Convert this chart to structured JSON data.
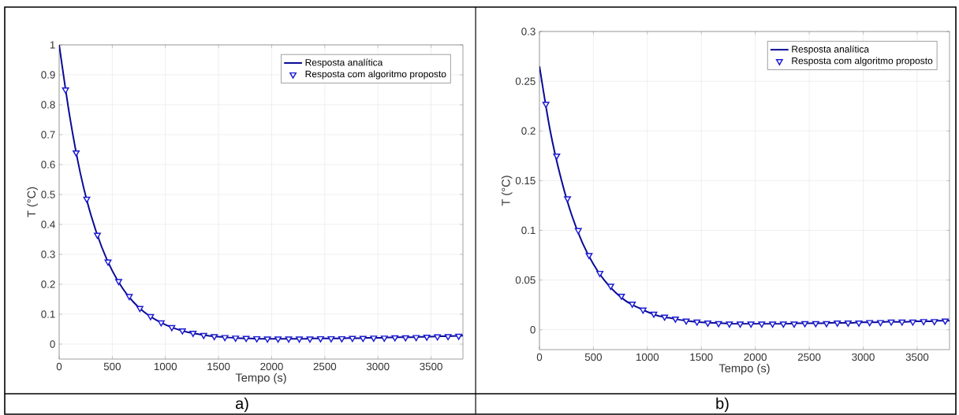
{
  "chart_data": [
    {
      "type": "line",
      "xlabel": "Tempo (s)",
      "ylabel": "T (°C)",
      "annotations": [
        "a)"
      ],
      "xlim": [
        0,
        3800
      ],
      "ylim": [
        -0.05,
        1
      ],
      "xticks": [
        0,
        500,
        1000,
        1500,
        2000,
        2500,
        3000,
        3500
      ],
      "yticks": [
        0,
        0.1,
        0.2,
        0.3,
        0.4,
        0.5,
        0.6,
        0.7,
        0.8,
        0.9,
        1
      ],
      "grid": true,
      "legend": "top right",
      "series": [
        {
          "name": "Resposta analítica",
          "color": "#0a0a96",
          "marker": "none",
          "x": [
            0,
            100,
            200,
            300,
            400,
            500,
            600,
            700,
            800,
            900,
            1000,
            1100,
            1200,
            1300,
            1400,
            1500,
            1600,
            1700,
            1800,
            1900,
            2000,
            2100,
            2200,
            2300,
            2400,
            2500,
            2600,
            2700,
            2800,
            2900,
            3000,
            3100,
            3200,
            3300,
            3400,
            3500,
            3600,
            3700,
            3800
          ],
          "values": [
            1,
            0.76,
            0.57,
            0.43,
            0.325,
            0.245,
            0.185,
            0.14,
            0.107,
            0.083,
            0.065,
            0.051,
            0.041,
            0.034,
            0.028,
            0.025,
            0.022,
            0.02,
            0.019,
            0.018,
            0.018,
            0.018,
            0.018,
            0.018,
            0.019,
            0.019,
            0.019,
            0.02,
            0.02,
            0.021,
            0.021,
            0.022,
            0.023,
            0.023,
            0.024,
            0.025,
            0.026,
            0.027,
            0.028
          ]
        },
        {
          "name": "Resposta com algoritmo proposto",
          "type": "scatter",
          "color": "#1a1ad2",
          "marker": "triangle",
          "x": [
            60,
            160,
            260,
            360,
            460,
            560,
            660,
            760,
            860,
            960,
            1060,
            1160,
            1260,
            1360,
            1460,
            1560,
            1660,
            1760,
            1860,
            1960,
            2060,
            2160,
            2260,
            2360,
            2460,
            2560,
            2660,
            2760,
            2860,
            2960,
            3060,
            3160,
            3260,
            3360,
            3460,
            3560,
            3660,
            3760
          ],
          "values": [
            0.85,
            0.64,
            0.485,
            0.365,
            0.275,
            0.21,
            0.16,
            0.12,
            0.093,
            0.072,
            0.056,
            0.045,
            0.037,
            0.03,
            0.026,
            0.023,
            0.021,
            0.02,
            0.019,
            0.018,
            0.018,
            0.018,
            0.018,
            0.018,
            0.019,
            0.019,
            0.019,
            0.02,
            0.02,
            0.021,
            0.021,
            0.022,
            0.022,
            0.023,
            0.024,
            0.025,
            0.026,
            0.027
          ]
        }
      ]
    },
    {
      "type": "line",
      "xlabel": "Tempo (s)",
      "ylabel": "T (°C)",
      "annotations": [
        "b)"
      ],
      "xlim": [
        0,
        3800
      ],
      "ylim": [
        -0.02,
        0.3
      ],
      "xticks": [
        0,
        500,
        1000,
        1500,
        2000,
        2500,
        3000,
        3500
      ],
      "yticks": [
        0,
        0.05,
        0.1,
        0.15,
        0.2,
        0.25,
        0.3
      ],
      "grid": true,
      "legend": "top right",
      "series": [
        {
          "name": "Resposta analítica",
          "color": "#0a0a96",
          "marker": "none",
          "x": [
            0,
            100,
            200,
            300,
            400,
            500,
            600,
            700,
            800,
            900,
            1000,
            1100,
            1200,
            1300,
            1400,
            1500,
            1600,
            1700,
            1800,
            1900,
            2000,
            2100,
            2200,
            2300,
            2400,
            2500,
            2600,
            2700,
            2800,
            2900,
            3000,
            3100,
            3200,
            3300,
            3400,
            3500,
            3600,
            3700,
            3800
          ],
          "values": [
            0.265,
            0.2,
            0.152,
            0.115,
            0.087,
            0.066,
            0.05,
            0.038,
            0.029,
            0.023,
            0.018,
            0.014,
            0.012,
            0.01,
            0.0085,
            0.0075,
            0.007,
            0.0065,
            0.006,
            0.006,
            0.006,
            0.006,
            0.006,
            0.006,
            0.0065,
            0.0065,
            0.0065,
            0.007,
            0.007,
            0.007,
            0.0075,
            0.0075,
            0.008,
            0.008,
            0.008,
            0.0085,
            0.0085,
            0.009,
            0.009
          ]
        },
        {
          "name": "Resposta com algoritmo proposto",
          "type": "scatter",
          "color": "#1a1ad2",
          "marker": "triangle",
          "x": [
            60,
            160,
            260,
            360,
            460,
            560,
            660,
            760,
            860,
            960,
            1060,
            1160,
            1260,
            1360,
            1460,
            1560,
            1660,
            1760,
            1860,
            1960,
            2060,
            2160,
            2260,
            2360,
            2460,
            2560,
            2660,
            2760,
            2860,
            2960,
            3060,
            3160,
            3260,
            3360,
            3460,
            3560,
            3660,
            3760
          ],
          "values": [
            0.227,
            0.175,
            0.132,
            0.1,
            0.075,
            0.057,
            0.044,
            0.034,
            0.026,
            0.02,
            0.016,
            0.013,
            0.011,
            0.009,
            0.008,
            0.007,
            0.0065,
            0.006,
            0.006,
            0.006,
            0.006,
            0.006,
            0.006,
            0.006,
            0.0065,
            0.0065,
            0.0065,
            0.007,
            0.007,
            0.007,
            0.0075,
            0.0075,
            0.008,
            0.008,
            0.008,
            0.0085,
            0.0085,
            0.009
          ]
        }
      ]
    }
  ]
}
